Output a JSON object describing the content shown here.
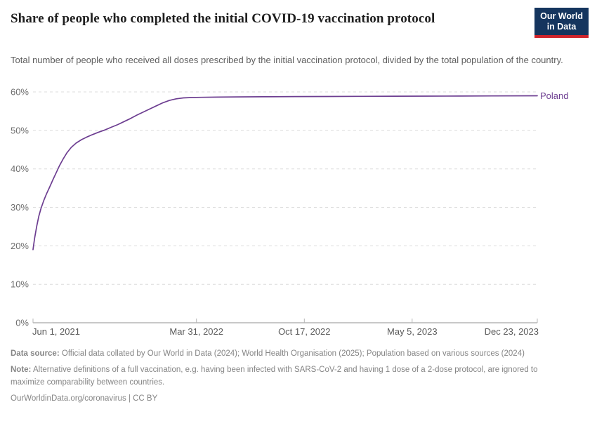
{
  "header": {
    "title": "Share of people who completed the initial COVID-19 vaccination protocol",
    "subtitle": "Total number of people who received all doses prescribed by the initial vaccination protocol, divided by the total population of the country.",
    "logo": {
      "line1": "Our World",
      "line2": "in Data"
    }
  },
  "chart_data": {
    "type": "line",
    "title": "Share of people who completed the initial COVID-19 vaccination protocol",
    "xlabel": "",
    "ylabel": "",
    "ylim": [
      0,
      60
    ],
    "grid": "dashed-horizontal",
    "legend_position": "right-of-line-end",
    "x_range": [
      "2021-06-01",
      "2023-12-23"
    ],
    "y_ticks": [
      0,
      10,
      20,
      30,
      40,
      50,
      60
    ],
    "y_tick_labels": [
      "0%",
      "10%",
      "20%",
      "30%",
      "40%",
      "50%",
      "60%"
    ],
    "x_ticks": [
      {
        "date": "2021-06-01",
        "label": "Jun 1, 2021",
        "anchor": "start"
      },
      {
        "date": "2022-03-31",
        "label": "Mar 31, 2022",
        "anchor": "middle"
      },
      {
        "date": "2022-10-17",
        "label": "Oct 17, 2022",
        "anchor": "middle"
      },
      {
        "date": "2023-05-05",
        "label": "May 5, 2023",
        "anchor": "middle"
      },
      {
        "date": "2023-12-23",
        "label": "Dec 23, 2023",
        "anchor": "end"
      }
    ],
    "series": [
      {
        "name": "Poland",
        "color": "#6d3e91",
        "points": [
          [
            "2021-06-01",
            19.0
          ],
          [
            "2021-06-04",
            22.0
          ],
          [
            "2021-06-08",
            25.2
          ],
          [
            "2021-06-12",
            27.8
          ],
          [
            "2021-06-16",
            29.8
          ],
          [
            "2021-06-21",
            31.8
          ],
          [
            "2021-06-26",
            33.5
          ],
          [
            "2021-07-02",
            35.3
          ],
          [
            "2021-07-08",
            37.2
          ],
          [
            "2021-07-14",
            39.0
          ],
          [
            "2021-07-20",
            40.8
          ],
          [
            "2021-07-27",
            42.6
          ],
          [
            "2021-08-03",
            44.2
          ],
          [
            "2021-08-11",
            45.6
          ],
          [
            "2021-08-20",
            46.7
          ],
          [
            "2021-08-30",
            47.6
          ],
          [
            "2021-09-09",
            48.3
          ],
          [
            "2021-09-19",
            48.9
          ],
          [
            "2021-09-30",
            49.5
          ],
          [
            "2021-10-12",
            50.1
          ],
          [
            "2021-10-24",
            50.8
          ],
          [
            "2021-11-05",
            51.5
          ],
          [
            "2021-11-17",
            52.3
          ],
          [
            "2021-11-29",
            53.1
          ],
          [
            "2021-12-11",
            54.0
          ],
          [
            "2021-12-23",
            54.8
          ],
          [
            "2022-01-04",
            55.6
          ],
          [
            "2022-01-16",
            56.4
          ],
          [
            "2022-01-28",
            57.2
          ],
          [
            "2022-02-09",
            57.8
          ],
          [
            "2022-02-21",
            58.2
          ],
          [
            "2022-03-07",
            58.45
          ],
          [
            "2022-03-21",
            58.55
          ],
          [
            "2022-04-10",
            58.6
          ],
          [
            "2022-05-10",
            58.65
          ],
          [
            "2022-06-15",
            58.7
          ],
          [
            "2022-08-01",
            58.75
          ],
          [
            "2022-10-01",
            58.8
          ],
          [
            "2022-12-01",
            58.82
          ],
          [
            "2023-02-01",
            58.85
          ],
          [
            "2023-04-01",
            58.88
          ],
          [
            "2023-06-01",
            58.9
          ],
          [
            "2023-08-01",
            58.93
          ],
          [
            "2023-10-01",
            58.96
          ],
          [
            "2023-12-23",
            59.0
          ]
        ]
      }
    ]
  },
  "colors": {
    "series_purple": "#6d3e91",
    "gridline": "#dcdcdc",
    "axis_line": "#a6a6a6",
    "tick_mark": "#b6b6b6",
    "y_label": "#6e6e6e",
    "x_label": "#5a5a5a",
    "logo_bg": "#15355e",
    "logo_stripe": "#cf242c"
  },
  "footer": {
    "datasource_label": "Data source:",
    "datasource_text": "Official data collated by Our World in Data (2024); World Health Organisation (2025); Population based on various sources (2024)",
    "note_label": "Note:",
    "note_text": "Alternative definitions of a full vaccination, e.g. having been infected with SARS-CoV-2 and having 1 dose of a 2-dose protocol, are ignored to maximize comparability between countries.",
    "link": "OurWorldinData.org/coronavirus",
    "separator": "|",
    "license": "CC BY"
  }
}
